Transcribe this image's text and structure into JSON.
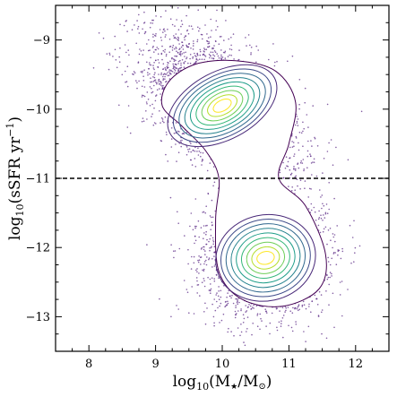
{
  "chart_data": {
    "type": "scatter",
    "xlabel_base": "log",
    "xlabel_sub": "10",
    "xlabel_arg": "(M",
    "xlabel_star": "★",
    "xlabel_mid": "/M",
    "xlabel_sun": "⊙",
    "xlabel_close": ")",
    "ylabel_base": "log",
    "ylabel_sub": "10",
    "ylabel_arg": "(sSFR yr",
    "ylabel_sup": "−1",
    "ylabel_close": ")",
    "xlim": [
      7.5,
      12.5
    ],
    "ylim": [
      -13.5,
      -8.5
    ],
    "x_ticks": [
      8,
      9,
      10,
      11,
      12
    ],
    "x_tick_labels": [
      "8",
      "9",
      "10",
      "11",
      "12"
    ],
    "y_ticks": [
      -9,
      -10,
      -11,
      -12,
      -13
    ],
    "y_tick_labels": [
      "−9",
      "−10",
      "−11",
      "−12",
      "−13"
    ],
    "scatter_color": "#5b2a86",
    "reference_line": {
      "y": -11.0,
      "style": "dashed",
      "color": "#000000"
    },
    "populations": [
      {
        "name": "",
        "center": [
          10.0,
          -9.95
        ],
        "spread": [
          0.55,
          0.38
        ],
        "tilt": -0.55
      },
      {
        "name": "",
        "center": [
          10.65,
          -12.15
        ],
        "spread": [
          0.42,
          0.35
        ],
        "tilt": 0.0
      }
    ],
    "contour_colors": [
      "#440154",
      "#482878",
      "#3e4a89",
      "#31688e",
      "#26828e",
      "#1f9e89",
      "#35b779",
      "#6ece58",
      "#b5de2b",
      "#fde725"
    ],
    "grid": false
  }
}
